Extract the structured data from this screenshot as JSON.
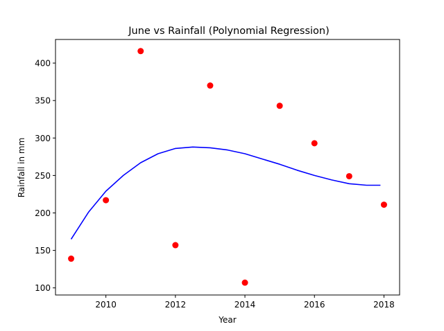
{
  "chart_data": {
    "type": "scatter",
    "title": "June vs Rainfall (Polynomial Regression)",
    "xlabel": "Year",
    "ylabel": "Rainfall in mm",
    "xlim": [
      2008.55,
      2018.45
    ],
    "ylim": [
      90.5,
      431.5
    ],
    "xticks": [
      2010,
      2012,
      2014,
      2016,
      2018
    ],
    "yticks": [
      100,
      150,
      200,
      250,
      300,
      350,
      400
    ],
    "grid": false,
    "legend": "none",
    "series": [
      {
        "kind": "points",
        "color": "#ff0000",
        "x": [
          2009,
          2010,
          2011,
          2012,
          2013,
          2014,
          2015,
          2016,
          2017,
          2018
        ],
        "y": [
          139,
          217,
          416,
          157,
          370,
          107,
          343,
          293,
          249,
          211
        ]
      },
      {
        "kind": "line",
        "color": "#0000ff",
        "x": [
          2009,
          2009.5,
          2010,
          2010.5,
          2011,
          2011.5,
          2012,
          2012.5,
          2013,
          2013.5,
          2014,
          2014.5,
          2015,
          2015.5,
          2016,
          2016.5,
          2017,
          2017.5,
          2017.9
        ],
        "y": [
          165,
          201,
          229,
          250,
          267,
          279,
          286,
          288,
          287,
          284,
          279,
          272,
          265,
          257,
          250,
          244,
          239,
          237,
          237
        ]
      }
    ]
  }
}
